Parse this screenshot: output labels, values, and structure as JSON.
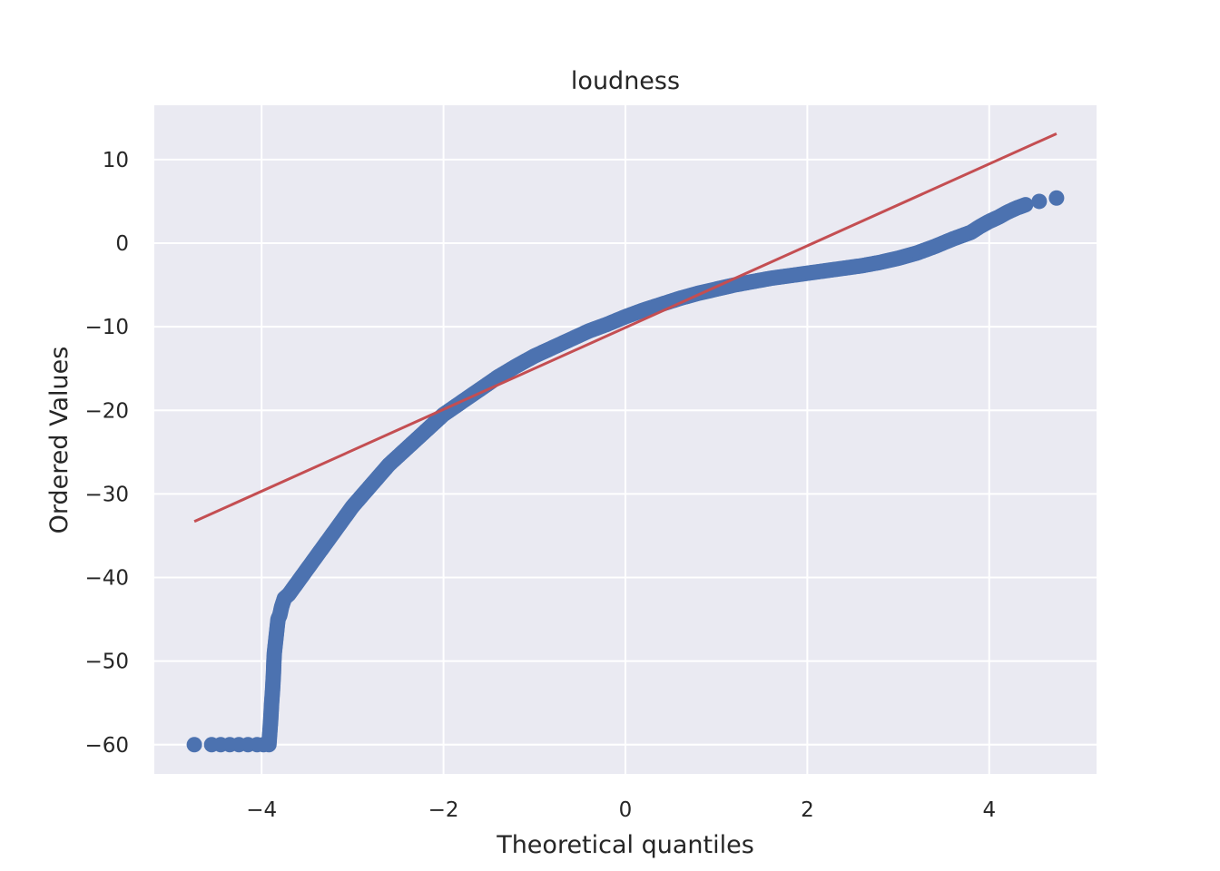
{
  "chart_data": {
    "type": "scatter",
    "title": "loudness",
    "xlabel": "Theoretical quantiles",
    "ylabel": "Ordered Values",
    "xlim": [
      -5.18,
      5.18
    ],
    "ylim": [
      -63.5,
      16.5
    ],
    "xticks": [
      -4,
      -2,
      0,
      2,
      4
    ],
    "yticks": [
      10,
      0,
      -10,
      -20,
      -30,
      -40,
      -50,
      -60
    ],
    "xtick_labels": [
      "−4",
      "−2",
      "0",
      "2",
      "4"
    ],
    "ytick_labels": [
      "10",
      "0",
      "−10",
      "−20",
      "−30",
      "−40",
      "−50",
      "−60"
    ],
    "grid": true,
    "colors": {
      "background": "#eaeaf2",
      "grid": "#ffffff",
      "points": "#4c72b0",
      "line": "#c44e52"
    },
    "series": [
      {
        "kind": "points",
        "x": [
          -4.74,
          -4.55,
          -4.45,
          -4.35,
          -4.25,
          -4.15,
          -4.05,
          -3.98,
          -3.92,
          -3.9,
          -3.89,
          -3.88,
          -3.87,
          -3.865,
          -3.86,
          -3.85,
          -3.84,
          -3.83,
          -3.82,
          -3.8,
          -3.78,
          -3.75,
          -3.7,
          -3.6,
          -3.5,
          -3.4,
          -3.3,
          -3.2,
          -3.0,
          -2.8,
          -2.6,
          -2.4,
          -2.2,
          -2.0,
          -1.8,
          -1.6,
          -1.4,
          -1.2,
          -1.0,
          -0.8,
          -0.6,
          -0.4,
          -0.2,
          0.0,
          0.2,
          0.4,
          0.6,
          0.8,
          1.0,
          1.2,
          1.4,
          1.6,
          1.8,
          2.0,
          2.2,
          2.4,
          2.6,
          2.8,
          3.0,
          3.2,
          3.4,
          3.6,
          3.8,
          3.9,
          4.0,
          4.1,
          4.2,
          4.3,
          4.4,
          4.55,
          4.74
        ],
        "y": [
          -60,
          -60,
          -60,
          -60,
          -60,
          -60,
          -60,
          -60,
          -60,
          -57,
          -55,
          -53.5,
          -51.5,
          -50,
          -49,
          -48,
          -47,
          -46,
          -45,
          -44.5,
          -43.5,
          -42.5,
          -42,
          -40.5,
          -39,
          -37.5,
          -36,
          -34.5,
          -31.5,
          -29,
          -26.5,
          -24.5,
          -22.5,
          -20.5,
          -19,
          -17.5,
          -16,
          -14.7,
          -13.5,
          -12.5,
          -11.5,
          -10.5,
          -9.7,
          -8.8,
          -8,
          -7.3,
          -6.6,
          -6,
          -5.5,
          -5,
          -4.6,
          -4.2,
          -3.9,
          -3.6,
          -3.3,
          -3,
          -2.7,
          -2.3,
          -1.8,
          -1.2,
          -0.4,
          0.5,
          1.3,
          2,
          2.6,
          3.1,
          3.7,
          4.2,
          4.6,
          5,
          5.4
        ]
      },
      {
        "kind": "fit-line",
        "x": [
          -4.74,
          4.74
        ],
        "y": [
          -33.3,
          13.1
        ]
      }
    ]
  }
}
